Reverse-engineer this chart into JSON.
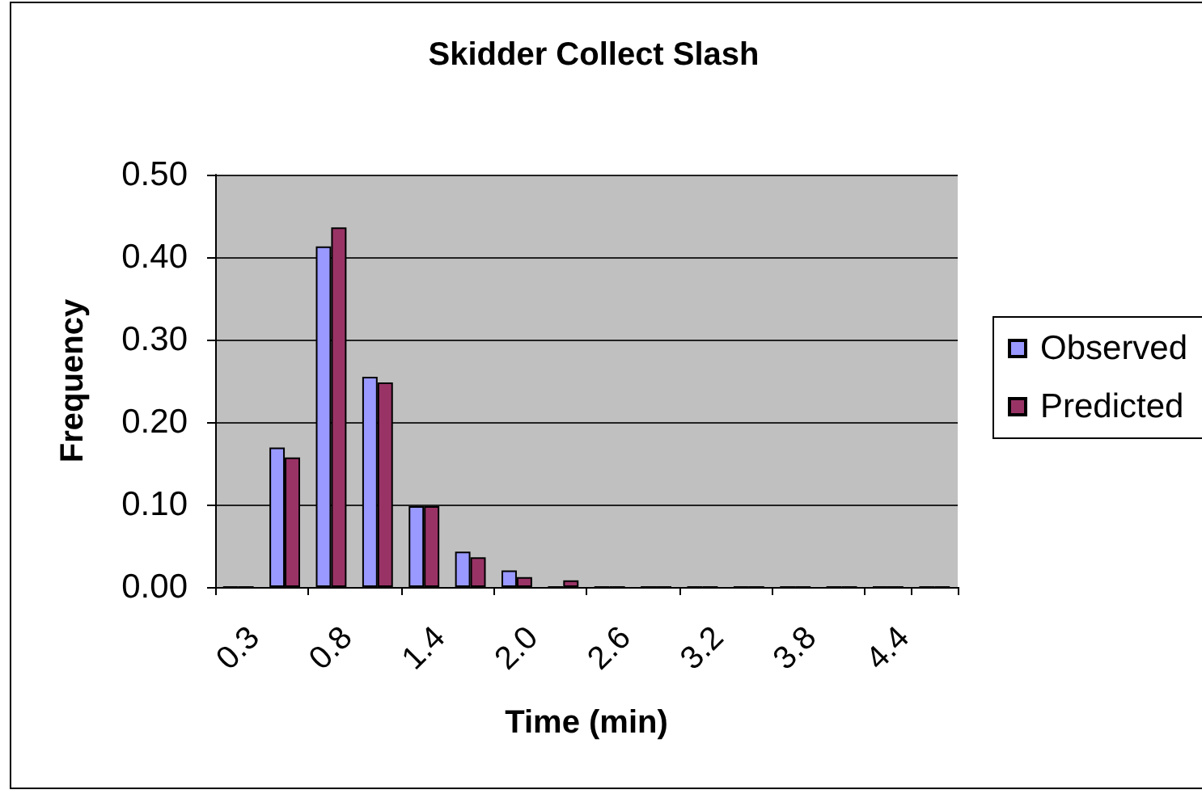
{
  "chart_data": {
    "type": "bar",
    "title": "Skidder Collect Slash",
    "xlabel": "Time (min)",
    "ylabel": "Frequency",
    "categories": [
      "0.3",
      null,
      "0.8",
      null,
      "1.4",
      null,
      "2.0",
      null,
      "2.6",
      null,
      "3.2",
      null,
      "3.8",
      null,
      "4.4",
      null
    ],
    "series": [
      {
        "name": "Observed",
        "color": "#9999ff",
        "values": [
          0,
          0.169,
          0.413,
          0.255,
          0.098,
          0.043,
          0.02,
          0,
          0,
          0,
          0,
          0,
          0,
          0,
          0,
          0
        ]
      },
      {
        "name": "Predicted",
        "color": "#993366",
        "values": [
          0,
          0.157,
          0.436,
          0.248,
          0.098,
          0.036,
          0.012,
          0.008,
          0,
          0,
          0,
          0,
          0,
          0,
          0,
          0
        ]
      }
    ],
    "ylim": [
      0,
      0.5
    ],
    "yticks": [
      {
        "value": 0,
        "label": "0.00"
      },
      {
        "value": 0.1,
        "label": "0.10"
      },
      {
        "value": 0.2,
        "label": "0.20"
      },
      {
        "value": 0.3,
        "label": "0.30"
      },
      {
        "value": 0.4,
        "label": "0.40"
      },
      {
        "value": 0.5,
        "label": "0.50"
      }
    ],
    "grid": "y",
    "legend": "right"
  }
}
